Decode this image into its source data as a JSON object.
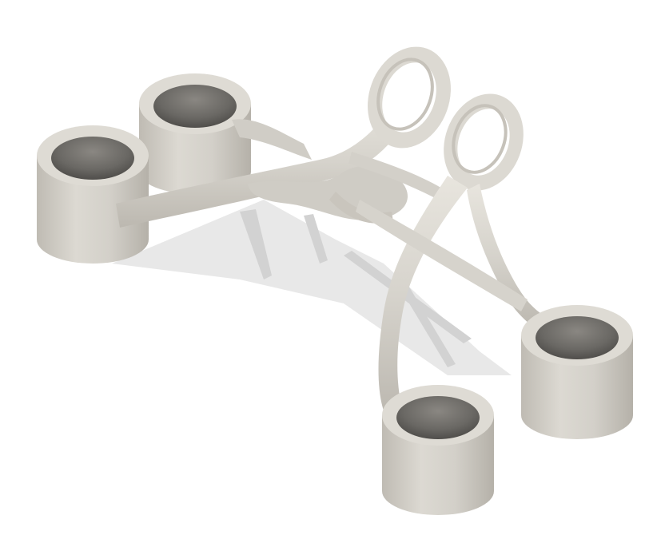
{
  "scene": {
    "background_color": "#ffffff",
    "material_color": "#d8d5ce",
    "material_light": "#e6e3dc",
    "material_dark": "#b9b5ad",
    "hole_color": "#6f6d69",
    "hole_dark": "#4f4d4a",
    "shadow_color": "#dcdcdc",
    "shadow_dark": "#c9c9c9"
  }
}
